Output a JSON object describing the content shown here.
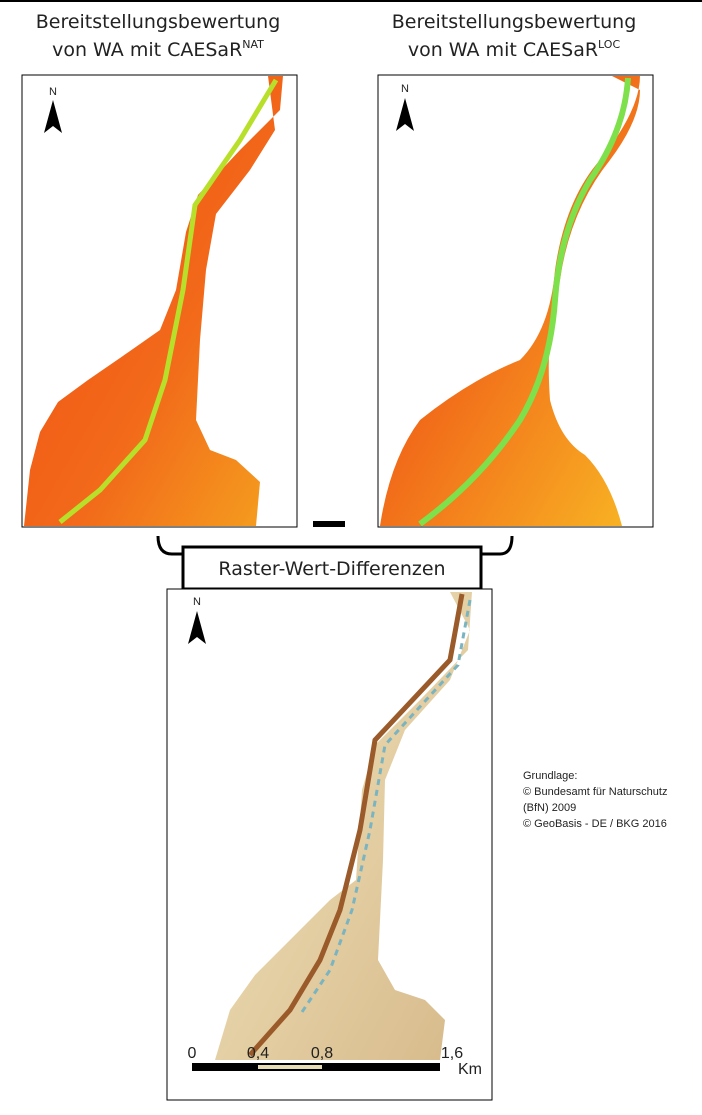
{
  "panels": [
    {
      "title_line1": "Bereitstellungsbewertung",
      "title_line2": "von WA mit CAESaR",
      "superscript": "NAT",
      "north_label": "N"
    },
    {
      "title_line1": "Bereitstellungsbewertung",
      "title_line2": "von WA mit CAESaR",
      "superscript": "LOC",
      "north_label": "N"
    }
  ],
  "difference": {
    "label": "Raster-Wert-Differenzen",
    "north_label": "N"
  },
  "scale_bar": {
    "labels": [
      "0",
      "0,4",
      "0,8",
      "1,6"
    ],
    "unit": "Km"
  },
  "credits": [
    "Grundlage:",
    "© Bundesamt für Naturschutz",
    "(BfN) 2009",
    "© GeoBasis - DE  / BKG 2016"
  ]
}
